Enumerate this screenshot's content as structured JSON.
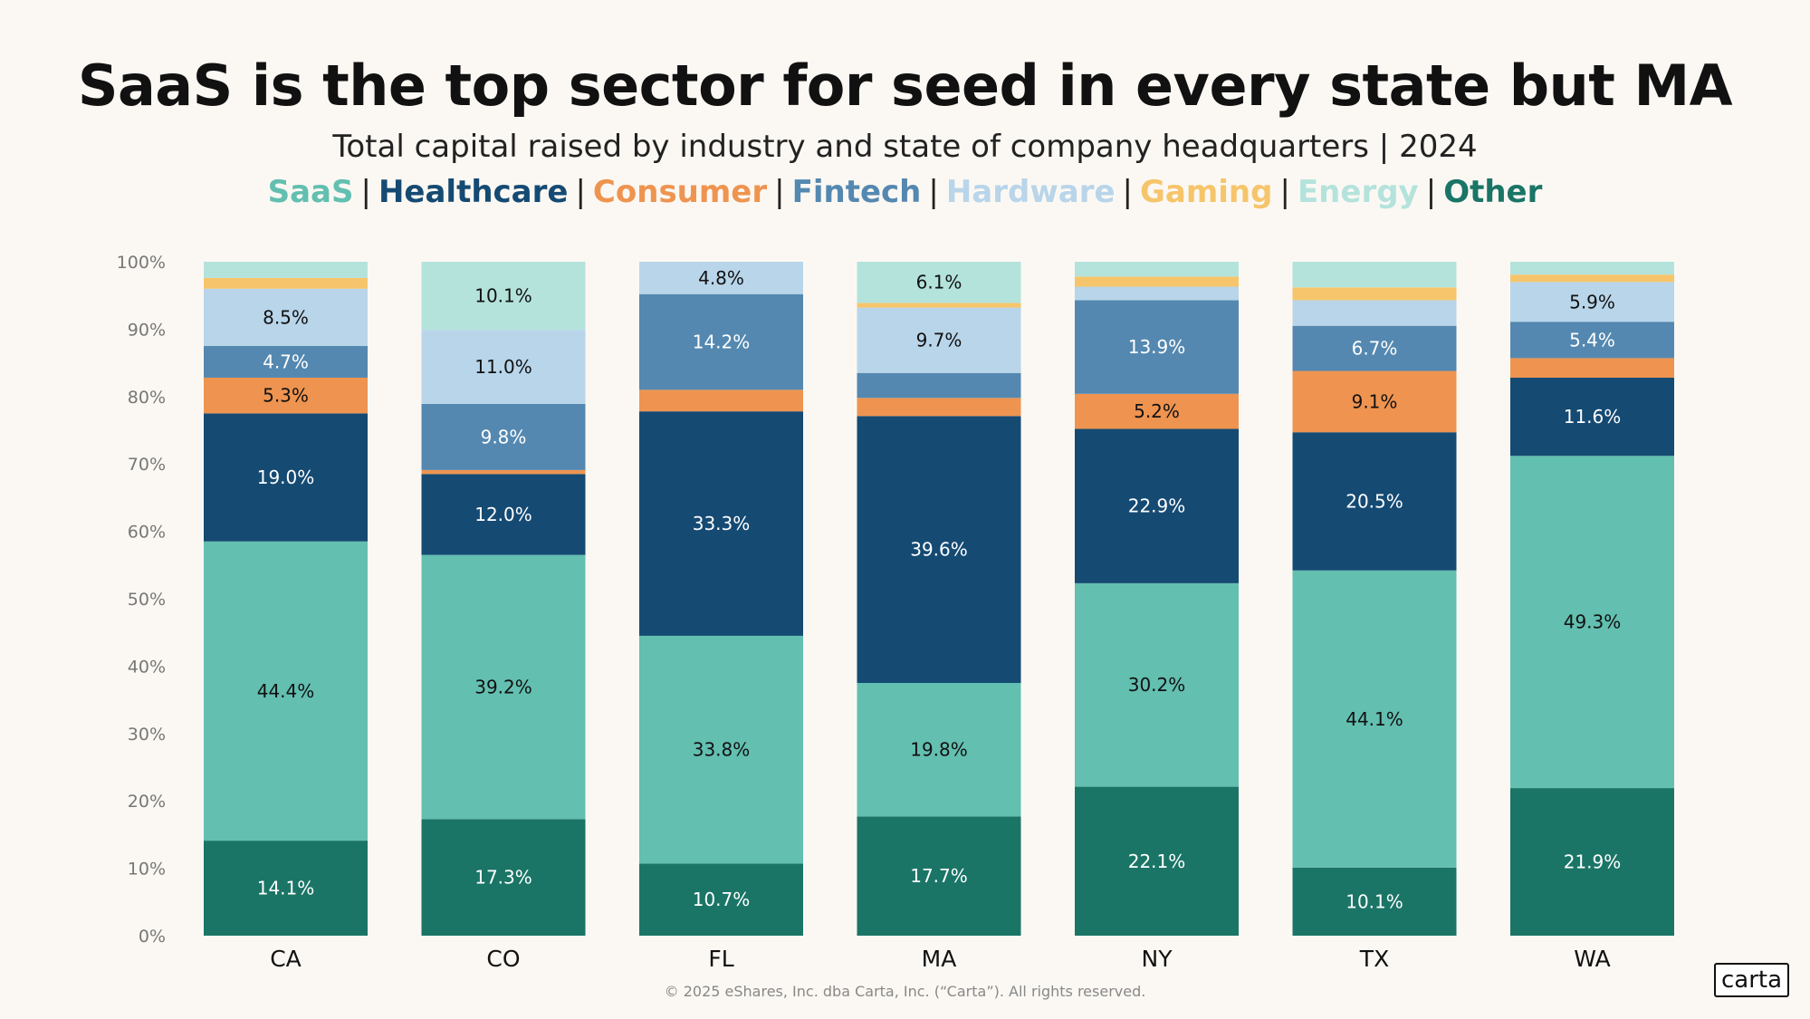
{
  "title": "SaaS is the top sector for seed in every state but MA",
  "subtitle": "Total capital raised by industry and state of company headquarters | 2024",
  "footer": "© 2025 eShares, Inc. dba Carta, Inc. (“Carta”). All rights reserved.",
  "logo": "carta",
  "chart_data": {
    "type": "bar",
    "stacked": true,
    "normalized": true,
    "title": "SaaS is the top sector for seed in every state but MA",
    "subtitle": "Total capital raised by industry and state of company headquarters | 2024",
    "xlabel": "",
    "ylabel": "",
    "ylim": [
      0,
      100
    ],
    "yticks": [
      "0%",
      "10%",
      "20%",
      "30%",
      "40%",
      "50%",
      "60%",
      "70%",
      "80%",
      "90%",
      "100%"
    ],
    "categories": [
      "CA",
      "CO",
      "FL",
      "MA",
      "NY",
      "TX",
      "WA"
    ],
    "legend": [
      {
        "name": "SaaS",
        "color": "#63bfb0"
      },
      {
        "name": "Healthcare",
        "color": "#154a73"
      },
      {
        "name": "Consumer",
        "color": "#ee9450"
      },
      {
        "name": "Fintech",
        "color": "#5488b0"
      },
      {
        "name": "Hardware",
        "color": "#b8d5ea"
      },
      {
        "name": "Gaming",
        "color": "#f6c56b"
      },
      {
        "name": "Energy",
        "color": "#b4e3dc"
      },
      {
        "name": "Other",
        "color": "#1a7566"
      }
    ],
    "series": [
      {
        "name": "Other",
        "color": "#1a7566",
        "label_color": "#ffffff",
        "values": [
          14.1,
          17.3,
          10.7,
          17.7,
          22.1,
          10.1,
          21.9
        ],
        "labels": [
          "14.1%",
          "17.3%",
          "10.7%",
          "17.7%",
          "22.1%",
          "10.1%",
          "21.9%"
        ]
      },
      {
        "name": "SaaS",
        "color": "#63bfb0",
        "label_color": "#111111",
        "values": [
          44.4,
          39.2,
          33.8,
          19.8,
          30.2,
          44.1,
          49.3
        ],
        "labels": [
          "44.4%",
          "39.2%",
          "33.8%",
          "19.8%",
          "30.2%",
          "44.1%",
          "49.3%"
        ]
      },
      {
        "name": "Healthcare",
        "color": "#154a73",
        "label_color": "#ffffff",
        "values": [
          19.0,
          12.0,
          33.3,
          39.6,
          22.9,
          20.5,
          11.6
        ],
        "labels": [
          "19.0%",
          "12.0%",
          "33.3%",
          "39.6%",
          "22.9%",
          "20.5%",
          "11.6%"
        ]
      },
      {
        "name": "Consumer",
        "color": "#ee9450",
        "label_color": "#111111",
        "values": [
          5.3,
          0.6,
          3.2,
          2.7,
          5.2,
          9.1,
          2.9
        ],
        "labels": [
          "5.3%",
          "",
          "",
          "",
          "5.2%",
          "9.1%",
          ""
        ]
      },
      {
        "name": "Fintech",
        "color": "#5488b0",
        "label_color": "#ffffff",
        "values": [
          4.7,
          9.8,
          14.2,
          3.7,
          13.9,
          6.7,
          5.4
        ],
        "labels": [
          "4.7%",
          "9.8%",
          "14.2%",
          "",
          "13.9%",
          "6.7%",
          "5.4%"
        ]
      },
      {
        "name": "Hardware",
        "color": "#b8d5ea",
        "label_color": "#111111",
        "values": [
          8.5,
          11.0,
          4.8,
          9.7,
          2.0,
          3.8,
          5.9
        ],
        "labels": [
          "8.5%",
          "11.0%",
          "4.8%",
          "9.7%",
          "",
          "",
          "5.9%"
        ]
      },
      {
        "name": "Gaming",
        "color": "#f6c56b",
        "label_color": "#111111",
        "values": [
          1.6,
          0,
          0,
          0.7,
          1.5,
          1.9,
          1.1
        ],
        "labels": [
          "",
          "",
          "",
          "",
          "",
          "",
          ""
        ]
      },
      {
        "name": "Energy",
        "color": "#b4e3dc",
        "label_color": "#111111",
        "values": [
          2.4,
          10.1,
          0,
          6.1,
          2.2,
          3.8,
          1.9
        ],
        "labels": [
          "",
          "10.1%",
          "",
          "6.1%",
          "",
          "",
          ""
        ]
      }
    ]
  }
}
